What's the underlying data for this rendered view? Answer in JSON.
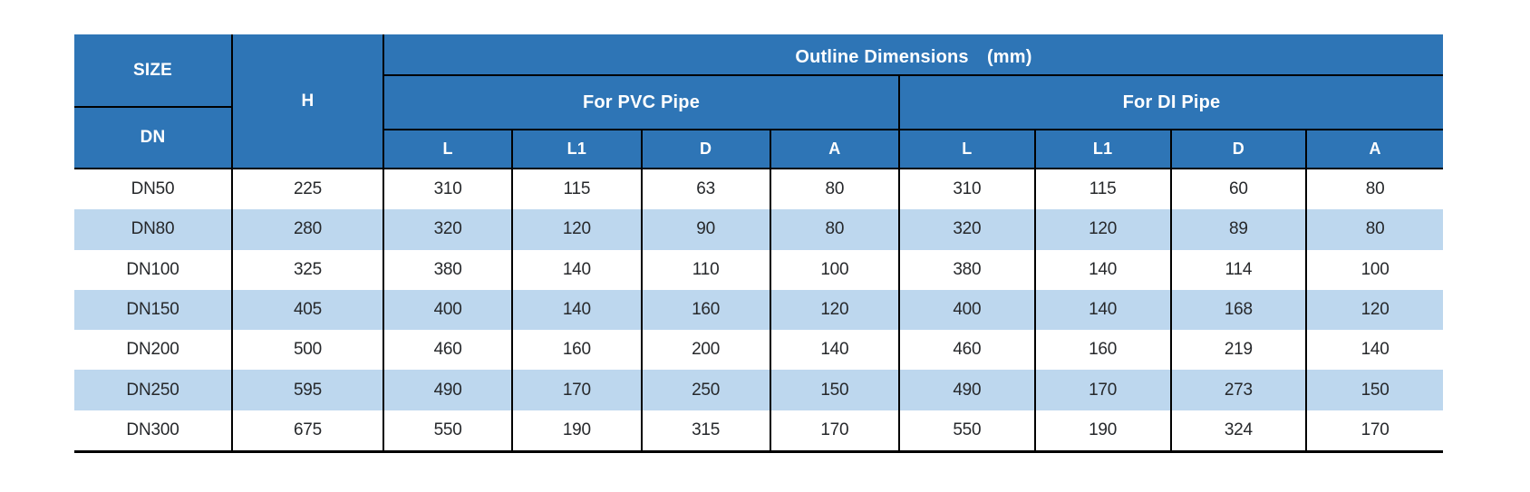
{
  "table": {
    "header": {
      "size_label": "SIZE",
      "dn_label": "DN",
      "h_label": "H",
      "outline_label": "Outline Dimensions　(mm)",
      "pvc_group_label": "For PVC Pipe",
      "di_group_label": "For DI Pipe",
      "sub_columns": [
        "L",
        "L1",
        "D",
        "A"
      ]
    },
    "rows": [
      {
        "dn": "DN50",
        "h": "225",
        "pvc": [
          "310",
          "115",
          "63",
          "80"
        ],
        "di": [
          "310",
          "115",
          "60",
          "80"
        ]
      },
      {
        "dn": "DN80",
        "h": "280",
        "pvc": [
          "320",
          "120",
          "90",
          "80"
        ],
        "di": [
          "320",
          "120",
          "89",
          "80"
        ]
      },
      {
        "dn": "DN100",
        "h": "325",
        "pvc": [
          "380",
          "140",
          "110",
          "100"
        ],
        "di": [
          "380",
          "140",
          "114",
          "100"
        ]
      },
      {
        "dn": "DN150",
        "h": "405",
        "pvc": [
          "400",
          "140",
          "160",
          "120"
        ],
        "di": [
          "400",
          "140",
          "168",
          "120"
        ]
      },
      {
        "dn": "DN200",
        "h": "500",
        "pvc": [
          "460",
          "160",
          "200",
          "140"
        ],
        "di": [
          "460",
          "160",
          "219",
          "140"
        ]
      },
      {
        "dn": "DN250",
        "h": "595",
        "pvc": [
          "490",
          "170",
          "250",
          "150"
        ],
        "di": [
          "490",
          "170",
          "273",
          "150"
        ]
      },
      {
        "dn": "DN300",
        "h": "675",
        "pvc": [
          "550",
          "190",
          "315",
          "170"
        ],
        "di": [
          "550",
          "190",
          "324",
          "170"
        ]
      }
    ],
    "colors": {
      "header_bg": "#2E75B6",
      "stripe_bg": "#BDD7EE",
      "border": "#000000",
      "body_text": "#26282b",
      "header_text": "#FFFFFF"
    }
  }
}
